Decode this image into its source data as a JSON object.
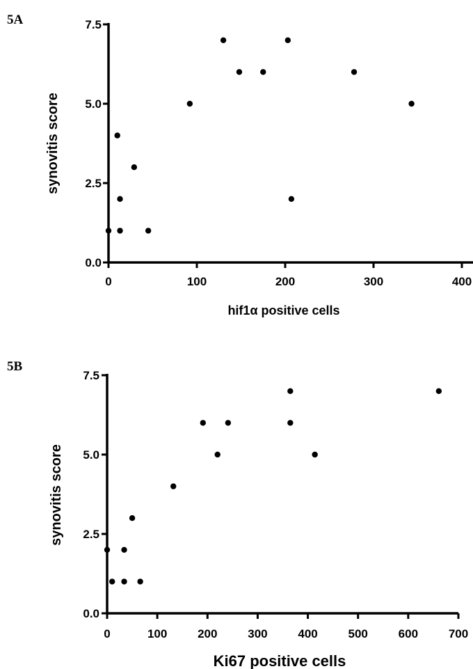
{
  "chart_data": [
    {
      "panel_label": "5A",
      "type": "scatter",
      "title": "",
      "xlabel": "hif1α positive cells",
      "ylabel": "synovitis score",
      "xlim": [
        0,
        400
      ],
      "ylim": [
        0,
        7.5
      ],
      "xticks": [
        "0",
        "100",
        "200",
        "300",
        "400"
      ],
      "yticks": [
        "0.0",
        "2.5",
        "5.0",
        "7.5"
      ],
      "grid": false,
      "points": [
        {
          "x": 0,
          "y": 1
        },
        {
          "x": 10,
          "y": 4
        },
        {
          "x": 13,
          "y": 2
        },
        {
          "x": 13,
          "y": 1
        },
        {
          "x": 29,
          "y": 3
        },
        {
          "x": 45,
          "y": 1
        },
        {
          "x": 92,
          "y": 5
        },
        {
          "x": 130,
          "y": 7
        },
        {
          "x": 148,
          "y": 6
        },
        {
          "x": 175,
          "y": 6
        },
        {
          "x": 203,
          "y": 7
        },
        {
          "x": 207,
          "y": 2
        },
        {
          "x": 278,
          "y": 6
        },
        {
          "x": 343,
          "y": 5
        }
      ]
    },
    {
      "panel_label": "5B",
      "type": "scatter",
      "title": "",
      "xlabel": "Ki67 positive cells",
      "ylabel": "synovitis score",
      "xlim": [
        0,
        700
      ],
      "ylim": [
        0,
        7.5
      ],
      "xticks": [
        "0",
        "100",
        "200",
        "300",
        "400",
        "500",
        "600",
        "700"
      ],
      "yticks": [
        "0.0",
        "2.5",
        "5.0",
        "7.5"
      ],
      "grid": false,
      "points": [
        {
          "x": 0,
          "y": 2
        },
        {
          "x": 10,
          "y": 1
        },
        {
          "x": 34,
          "y": 2
        },
        {
          "x": 34,
          "y": 1
        },
        {
          "x": 50,
          "y": 3
        },
        {
          "x": 66,
          "y": 1
        },
        {
          "x": 132,
          "y": 4
        },
        {
          "x": 191,
          "y": 6
        },
        {
          "x": 220,
          "y": 5
        },
        {
          "x": 241,
          "y": 6
        },
        {
          "x": 365,
          "y": 7
        },
        {
          "x": 365,
          "y": 6
        },
        {
          "x": 414,
          "y": 5
        },
        {
          "x": 661,
          "y": 7
        }
      ]
    }
  ]
}
